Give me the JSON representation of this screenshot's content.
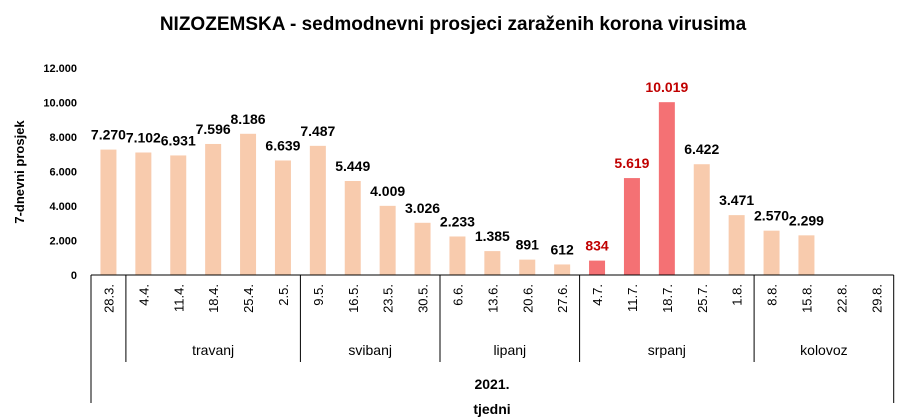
{
  "chart_data": {
    "type": "bar",
    "title": "NIZOZEMSKA - sedmodnevni prosjeci zaraženih korona virusima",
    "ylabel": "7-dnevni prosjek",
    "xlabel": "tjedni",
    "year_label": "2021.",
    "ylim": [
      0,
      12000
    ],
    "yticks": [
      "0",
      "2.000",
      "4.000",
      "6.000",
      "8.000",
      "10.000",
      "12.000"
    ],
    "categories": [
      "28.3.",
      "4.4.",
      "11.4.",
      "18.4.",
      "25.4.",
      "2.5.",
      "9.5.",
      "16.5.",
      "23.5.",
      "30.5.",
      "6.6.",
      "13.6.",
      "20.6.",
      "27.6.",
      "4.7.",
      "11.7.",
      "18.7.",
      "25.7.",
      "1.8.",
      "8.8.",
      "15.8.",
      "22.8.",
      "29.8."
    ],
    "values": [
      7270,
      7102,
      6931,
      7596,
      8186,
      6639,
      7487,
      5449,
      4009,
      3026,
      2233,
      1385,
      891,
      612,
      834,
      5619,
      10019,
      6422,
      3471,
      2570,
      2299,
      null,
      null
    ],
    "value_labels": [
      "7.270",
      "7.102",
      "6.931",
      "7.596",
      "8.186",
      "6.639",
      "7.487",
      "5.449",
      "4.009",
      "3.026",
      "2.233",
      "1.385",
      "891",
      "612",
      "834",
      "5.619",
      "10.019",
      "6.422",
      "3.471",
      "2.570",
      "2.299",
      "",
      ""
    ],
    "highlighted": [
      false,
      false,
      false,
      false,
      false,
      false,
      false,
      false,
      false,
      false,
      false,
      false,
      false,
      false,
      true,
      true,
      true,
      false,
      false,
      false,
      false,
      false,
      false
    ],
    "months": [
      {
        "name": "travanj",
        "start": 1,
        "end": 5
      },
      {
        "name": "svibanj",
        "start": 6,
        "end": 9
      },
      {
        "name": "lipanj",
        "start": 10,
        "end": 13
      },
      {
        "name": "srpanj",
        "start": 14,
        "end": 18
      },
      {
        "name": "kolovoz",
        "start": 19,
        "end": 22
      }
    ],
    "grid": false,
    "legend": "none"
  },
  "colors": {
    "bar": "#F8CBAD",
    "bar_highlight": "#F47174",
    "label": "#000000",
    "label_highlight": "#C00000",
    "axis": "#000000"
  }
}
